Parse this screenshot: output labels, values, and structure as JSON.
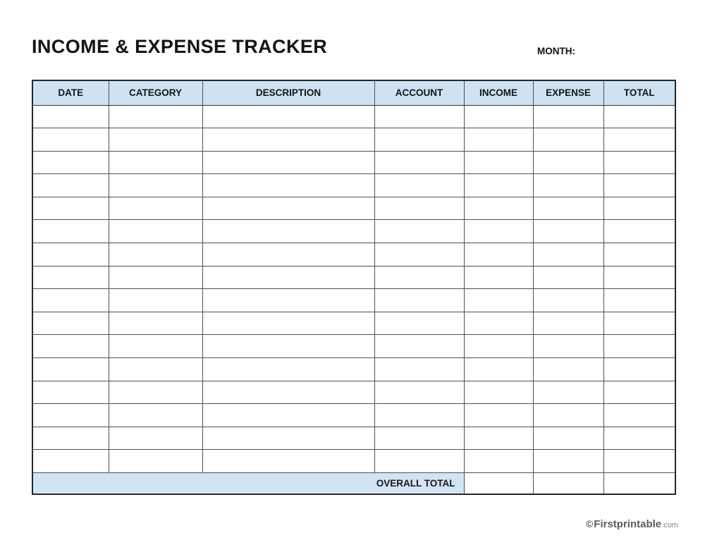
{
  "page": {
    "title": "INCOME & EXPENSE TRACKER",
    "month_label": "MONTH:"
  },
  "table": {
    "headers": [
      "DATE",
      "CATEGORY",
      "DESCRIPTION",
      "ACCOUNT",
      "INCOME",
      "EXPENSE",
      "TOTAL"
    ],
    "row_count": 16,
    "empty_cell": "",
    "footer": {
      "label": "OVERALL TOTAL",
      "income_value": "",
      "expense_value": "",
      "total_value": ""
    }
  },
  "colors": {
    "header_bg": "#cfe2f3",
    "overall_total_bg": "#d2e4f4",
    "outer_border": "#262626",
    "inner_border": "#4f4f4f",
    "title_text": "#141414",
    "footer_text": "#5a5d61"
  },
  "brand_footer": {
    "copyright_symbol": "©",
    "brand": "Firstprintable",
    "suffix": ".com"
  }
}
